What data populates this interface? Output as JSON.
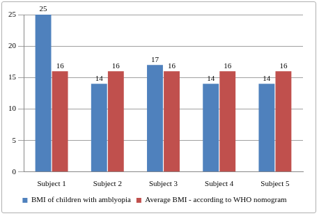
{
  "chart_data": {
    "type": "bar",
    "categories": [
      "Subject 1",
      "Subject 2",
      "Subject 3",
      "Subject 4",
      "Subject 5"
    ],
    "series": [
      {
        "name": "BMI of children with amblyopia",
        "color": "#4f81bd",
        "values": [
          25,
          14,
          17,
          14,
          14
        ]
      },
      {
        "name": "Average BMI - according to WHO nomogram",
        "color": "#c0504d",
        "values": [
          16,
          16,
          16,
          16,
          16
        ]
      }
    ],
    "ylim": [
      0,
      25
    ],
    "yticks": [
      0,
      5,
      10,
      15,
      20,
      25
    ],
    "grid": true,
    "legend": "bottom",
    "data_labels": true
  }
}
